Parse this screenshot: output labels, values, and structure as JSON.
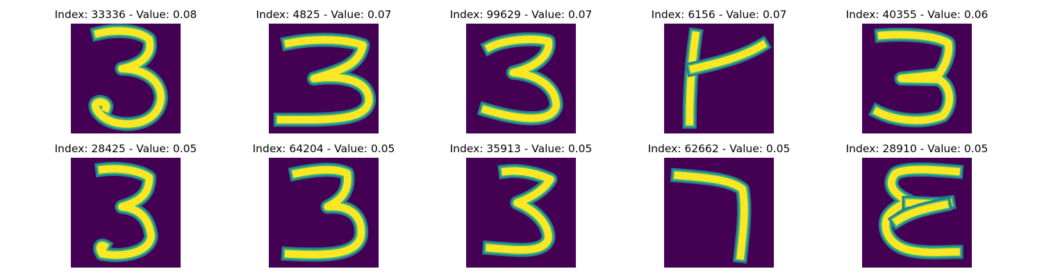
{
  "colors": {
    "background": "#440154",
    "stroke_outer": "#2a788e",
    "stroke_mid": "#35b779",
    "stroke_core": "#fde725"
  },
  "panels": [
    {
      "title": "Index: 33336 - Value: 0.08"
    },
    {
      "title": "Index: 4825 - Value: 0.07"
    },
    {
      "title": "Index: 99629 - Value: 0.07"
    },
    {
      "title": "Index: 6156 - Value: 0.07"
    },
    {
      "title": "Index: 40355 - Value: 0.06"
    },
    {
      "title": "Index: 28425 - Value: 0.05"
    },
    {
      "title": "Index: 64204 - Value: 0.05"
    },
    {
      "title": "Index: 35913 - Value: 0.05"
    },
    {
      "title": "Index: 62662 - Value: 0.05"
    },
    {
      "title": "Index: 28910 - Value: 0.05"
    }
  ]
}
